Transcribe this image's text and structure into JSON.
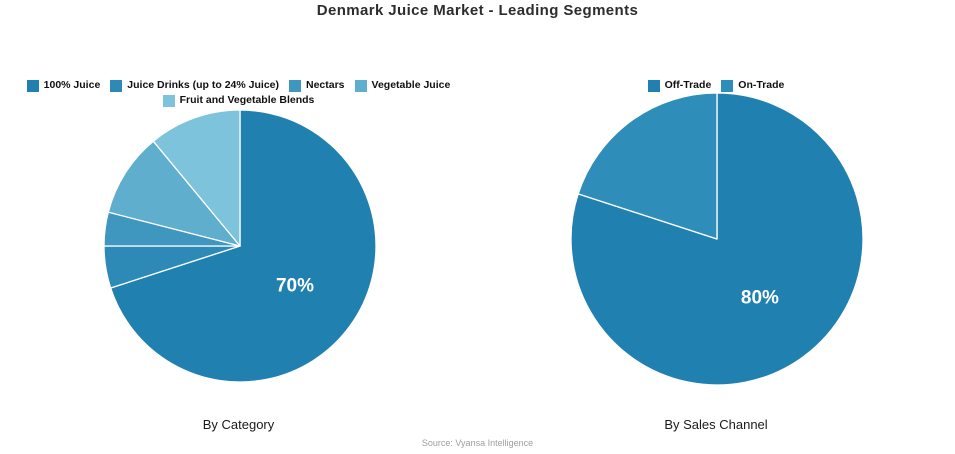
{
  "title": "Denmark Juice Market - Leading Segments",
  "source": "Source: Vyansa Intelligence",
  "chart_data": [
    {
      "type": "pie",
      "caption": "By Category",
      "start_angle_deg": 0,
      "direction": "clockwise",
      "legend_position": "top",
      "slices": [
        {
          "label": "100% Juice",
          "value": 70,
          "color": "#2080b0",
          "data_label": "70%"
        },
        {
          "label": "Juice Drinks (up to 24% Juice)",
          "value": 5,
          "color": "#2d89b5",
          "data_label": ""
        },
        {
          "label": "Nectars",
          "value": 4,
          "color": "#3f96bf",
          "data_label": ""
        },
        {
          "label": "Vegetable Juice",
          "value": 10,
          "color": "#5faecd",
          "data_label": ""
        },
        {
          "label": "Fruit and Vegetable Blends",
          "value": 11,
          "color": "#7ec3dc",
          "data_label": ""
        }
      ]
    },
    {
      "type": "pie",
      "caption": "By Sales Channel",
      "start_angle_deg": 0,
      "direction": "clockwise",
      "legend_position": "top",
      "slices": [
        {
          "label": "Off-Trade",
          "value": 80,
          "color": "#2080b0",
          "data_label": "80%"
        },
        {
          "label": "On-Trade",
          "value": 20,
          "color": "#2e8db9",
          "data_label": ""
        }
      ]
    }
  ]
}
